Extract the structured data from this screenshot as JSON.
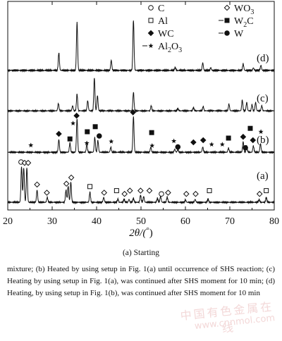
{
  "chart_data": {
    "type": "line",
    "xlabel_main": "2θ/(",
    "xlabel_deg": "°",
    "xlabel_close": ")",
    "xlim": [
      20,
      80
    ],
    "x_ticks": [
      "20",
      "30",
      "40",
      "50",
      "60",
      "70",
      "80"
    ],
    "tick_values": [
      20,
      30,
      40,
      50,
      60,
      70,
      80
    ],
    "legend": [
      {
        "symbol": "open-circle",
        "label": "C"
      },
      {
        "symbol": "open-diamond",
        "label": "WO",
        "sub": "3"
      },
      {
        "symbol": "open-square",
        "label": "Al"
      },
      {
        "symbol": "filled-square",
        "label": "W",
        "sub": "2",
        "after": "C"
      },
      {
        "symbol": "filled-diamond",
        "label": "WC"
      },
      {
        "symbol": "filled-circle",
        "label": "W"
      },
      {
        "symbol": "star",
        "label": "Al",
        "sub": "2",
        "after": "O",
        "sub2": "3"
      }
    ],
    "series": [
      {
        "name": "(d)",
        "label": "(d)",
        "peaks": [
          [
            31.5,
            0.35
          ],
          [
            35.6,
            0.95
          ],
          [
            43.3,
            0.2
          ],
          [
            48.3,
            1.0
          ],
          [
            57.7,
            0.06
          ],
          [
            63.9,
            0.15
          ],
          [
            65.7,
            0.05
          ],
          [
            73.0,
            0.13
          ],
          [
            75.3,
            0.05
          ],
          [
            77.0,
            0.1
          ]
        ],
        "markers": []
      },
      {
        "name": "(c)",
        "label": "(c)",
        "peaks": [
          [
            31.4,
            0.22
          ],
          [
            34.6,
            0.15
          ],
          [
            35.6,
            0.5
          ],
          [
            38.0,
            0.3
          ],
          [
            39.5,
            0.98
          ],
          [
            40.2,
            0.45
          ],
          [
            48.3,
            0.55
          ],
          [
            52.3,
            0.15
          ],
          [
            58.3,
            0.07
          ],
          [
            61.8,
            0.1
          ],
          [
            64.0,
            0.13
          ],
          [
            69.8,
            0.2
          ],
          [
            72.8,
            0.32
          ],
          [
            73.8,
            0.25
          ],
          [
            75.0,
            0.18
          ],
          [
            75.8,
            0.25
          ],
          [
            77.2,
            0.15
          ]
        ],
        "markers": []
      },
      {
        "name": "(b)",
        "label": "(b)",
        "peaks": [
          [
            31.5,
            0.3
          ],
          [
            34.0,
            0.22
          ],
          [
            35.6,
            0.8
          ],
          [
            37.8,
            0.18
          ],
          [
            39.6,
            0.35
          ],
          [
            40.3,
            0.28
          ],
          [
            43.2,
            0.12
          ],
          [
            48.3,
            0.85
          ],
          [
            52.2,
            0.12
          ],
          [
            57.6,
            0.07
          ],
          [
            58.3,
            0.07
          ],
          [
            63.9,
            0.12
          ],
          [
            69.7,
            0.1
          ],
          [
            73.0,
            0.25
          ],
          [
            73.8,
            0.15
          ],
          [
            75.3,
            0.15
          ],
          [
            76.9,
            0.2
          ]
        ],
        "markers": [
          {
            "x": 25.2,
            "y": 0.18,
            "s": "star"
          },
          {
            "x": 31.5,
            "y": 0.45,
            "s": "filled-diamond"
          },
          {
            "x": 34.0,
            "y": 0.33,
            "s": "filled-square"
          },
          {
            "x": 34.7,
            "y": 0.7,
            "s": "star"
          },
          {
            "x": 35.5,
            "y": 0.88,
            "s": "filled-diamond"
          },
          {
            "x": 37.8,
            "y": 0.23,
            "s": "star"
          },
          {
            "x": 37.9,
            "y": 0.5,
            "s": "filled-square"
          },
          {
            "x": 39.7,
            "y": 0.62,
            "s": "filled-square"
          },
          {
            "x": 40.6,
            "y": 0.4,
            "s": "filled-circle"
          },
          {
            "x": 43.3,
            "y": 0.27,
            "s": "star"
          },
          {
            "x": 48.2,
            "y": 0.96,
            "s": "filled-diamond"
          },
          {
            "x": 52.4,
            "y": 0.48,
            "s": "filled-square"
          },
          {
            "x": 52.5,
            "y": 0.17,
            "s": "star"
          },
          {
            "x": 57.4,
            "y": 0.28,
            "s": "star"
          },
          {
            "x": 58.3,
            "y": 0.14,
            "s": "filled-circle"
          },
          {
            "x": 61.8,
            "y": 0.25,
            "s": "filled-diamond"
          },
          {
            "x": 64.0,
            "y": 0.3,
            "s": "filled-diamond"
          },
          {
            "x": 65.9,
            "y": 0.2,
            "s": "star"
          },
          {
            "x": 68.3,
            "y": 0.2,
            "s": "star"
          },
          {
            "x": 69.7,
            "y": 0.35,
            "s": "filled-square"
          },
          {
            "x": 73.0,
            "y": 0.38,
            "s": "filled-diamond"
          },
          {
            "x": 73.5,
            "y": 0.12,
            "s": "filled-circle"
          },
          {
            "x": 74.6,
            "y": 0.58,
            "s": "filled-square"
          },
          {
            "x": 75.2,
            "y": 0.3,
            "s": "filled-diamond"
          },
          {
            "x": 77.0,
            "y": 0.5,
            "s": "star"
          }
        ]
      },
      {
        "name": "(a)",
        "label": "(a)",
        "peaks": [
          [
            23.1,
            0.88
          ],
          [
            23.6,
            0.85
          ],
          [
            24.3,
            0.85
          ],
          [
            26.6,
            0.3
          ],
          [
            28.9,
            0.12
          ],
          [
            33.1,
            0.3
          ],
          [
            33.6,
            0.4
          ],
          [
            34.2,
            0.5
          ],
          [
            38.5,
            0.25
          ],
          [
            41.6,
            0.12
          ],
          [
            44.8,
            0.08
          ],
          [
            46.2,
            0.08
          ],
          [
            47.3,
            0.07
          ],
          [
            48.3,
            0.1
          ],
          [
            49.9,
            0.17
          ],
          [
            50.6,
            0.14
          ],
          [
            53.7,
            0.1
          ],
          [
            54.4,
            0.15
          ],
          [
            55.9,
            0.13
          ],
          [
            60.0,
            0.06
          ],
          [
            62.2,
            0.07
          ],
          [
            65.1,
            0.08
          ],
          [
            76.6,
            0.07
          ],
          [
            78.2,
            0.12
          ]
        ],
        "markers": [
          {
            "x": 23.0,
            "y": 1.0,
            "s": "open-circle"
          },
          {
            "x": 23.8,
            "y": 0.98,
            "s": "open-diamond"
          },
          {
            "x": 24.6,
            "y": 0.98,
            "s": "open-diamond"
          },
          {
            "x": 26.6,
            "y": 0.45,
            "s": "open-diamond"
          },
          {
            "x": 28.8,
            "y": 0.25,
            "s": "open-diamond"
          },
          {
            "x": 33.2,
            "y": 0.47,
            "s": "open-diamond"
          },
          {
            "x": 34.3,
            "y": 0.62,
            "s": "open-diamond"
          },
          {
            "x": 38.5,
            "y": 0.4,
            "s": "open-square"
          },
          {
            "x": 41.7,
            "y": 0.25,
            "s": "open-diamond"
          },
          {
            "x": 44.5,
            "y": 0.3,
            "s": "open-square"
          },
          {
            "x": 46.3,
            "y": 0.22,
            "s": "open-diamond"
          },
          {
            "x": 47.5,
            "y": 0.3,
            "s": "open-diamond"
          },
          {
            "x": 49.9,
            "y": 0.3,
            "s": "open-diamond"
          },
          {
            "x": 51.9,
            "y": 0.3,
            "s": "open-diamond"
          },
          {
            "x": 54.6,
            "y": 0.22,
            "s": "open-circle"
          },
          {
            "x": 56.1,
            "y": 0.25,
            "s": "open-diamond"
          },
          {
            "x": 60.2,
            "y": 0.22,
            "s": "open-diamond"
          },
          {
            "x": 62.3,
            "y": 0.22,
            "s": "open-diamond"
          },
          {
            "x": 65.4,
            "y": 0.3,
            "s": "open-square"
          },
          {
            "x": 76.7,
            "y": 0.22,
            "s": "open-diamond"
          },
          {
            "x": 78.2,
            "y": 0.3,
            "s": "open-square"
          }
        ]
      }
    ]
  },
  "caption": {
    "sub": "(a) Starting",
    "body": "mixture; (b) Heated by using setup in Fig. 1(a) until occurrence of SHS reaction; (c) Heating by using setup in Fig. 1(a), was continued after SHS moment for 10 min; (d) Heating, by using setup in Fig. 1(b), was continued after SHS moment for 10 min"
  },
  "watermark": {
    "line1": "中国有色金属在线",
    "line2": "www.cnnmol.com"
  }
}
